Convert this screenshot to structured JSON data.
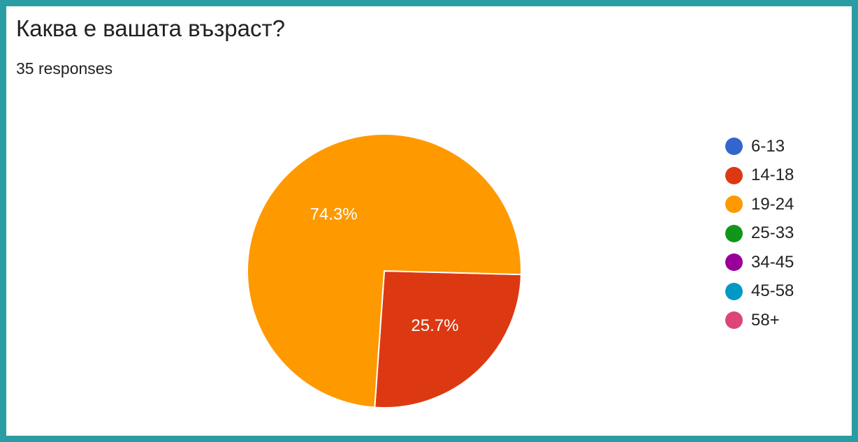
{
  "chart_data": {
    "type": "pie",
    "title": "Каква е вашата възраст?",
    "subtitle": "35 responses",
    "slices": [
      {
        "label": "6-13",
        "value": 0,
        "color": "#3366cc"
      },
      {
        "label": "14-18",
        "value": 25.7,
        "color": "#dc3912",
        "data_label": "25.7%"
      },
      {
        "label": "19-24",
        "value": 74.3,
        "color": "#ff9900",
        "data_label": "74.3%"
      },
      {
        "label": "25-33",
        "value": 0,
        "color": "#109618"
      },
      {
        "label": "34-45",
        "value": 0,
        "color": "#990099"
      },
      {
        "label": "45-58",
        "value": 0,
        "color": "#0099c6"
      },
      {
        "label": "58+",
        "value": 0,
        "color": "#dd4477"
      }
    ],
    "legend_position": "right"
  },
  "colors": {
    "frame_border": "#2a9ca3",
    "slice_separator": "#ffffff",
    "data_label": "#ffffff"
  }
}
